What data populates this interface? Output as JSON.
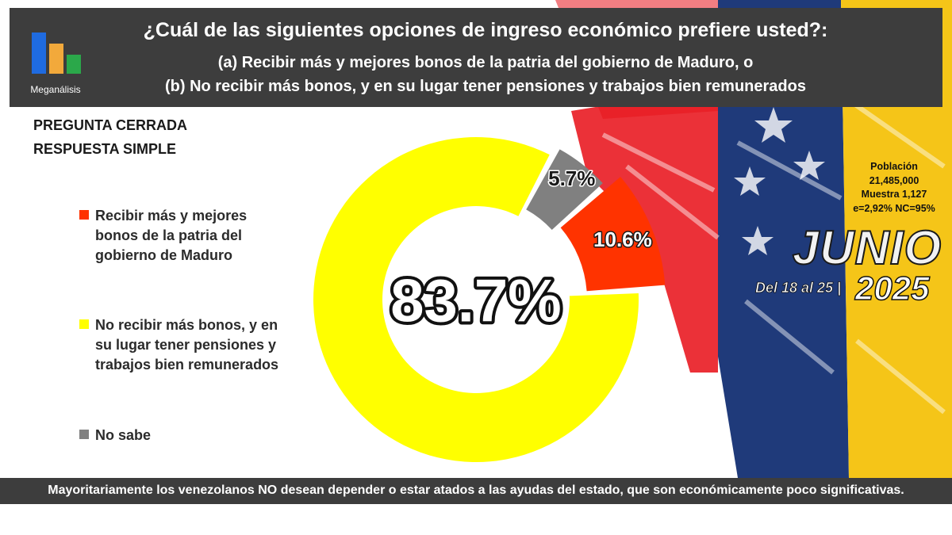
{
  "header": {
    "logo_text": "Meganálisis",
    "logo_colors": [
      "#1f6be0",
      "#f2a93b",
      "#2ba84a"
    ],
    "question": "¿Cuál de las siguientes opciones de ingreso económico prefiere usted?:",
    "option_a": "(a)   Recibir más y mejores bonos de la patria del gobierno de Maduro, o",
    "option_b": "(b) No recibir más bonos, y en su lugar tener pensiones y trabajos bien remunerados"
  },
  "question_type": {
    "line1": "PREGUNTA CERRADA",
    "line2": "RESPUESTA SIMPLE"
  },
  "legend": [
    {
      "label": "Recibir más y mejores bonos de la patria del gobierno de Maduro",
      "color": "#ff3300"
    },
    {
      "label": "No recibir más bonos, y en su lugar tener pensiones y trabajos bien remunerados",
      "color": "#ffff00"
    },
    {
      "label": "No sabe",
      "color": "#808080"
    }
  ],
  "survey_info": {
    "population_label": "Población",
    "population_value": "21,485,000",
    "sample": "Muestra 1,127",
    "error_confidence": "e=2,92%  NC=95%"
  },
  "period": {
    "month": "JUNIO",
    "range": "Del 18 al 25 |",
    "year": "2025"
  },
  "chart_data": {
    "type": "pie",
    "categories": [
      "Recibir más y mejores bonos de la patria del gobierno de Maduro",
      "No recibir más bonos, y en su lugar tener pensiones y trabajos bien remunerados",
      "No sabe"
    ],
    "values": [
      10.6,
      83.7,
      5.7
    ],
    "labels": [
      "10.6%",
      "83.7%",
      "5.7%"
    ],
    "colors": [
      "#ff3300",
      "#ffff00",
      "#808080"
    ],
    "title": "",
    "donut": true,
    "legend_position": "left"
  },
  "footer": {
    "text": "Mayoritariamente los venezolanos NO desean depender o estar atados a las ayudas del estado, que son económicamente poco significativas."
  }
}
